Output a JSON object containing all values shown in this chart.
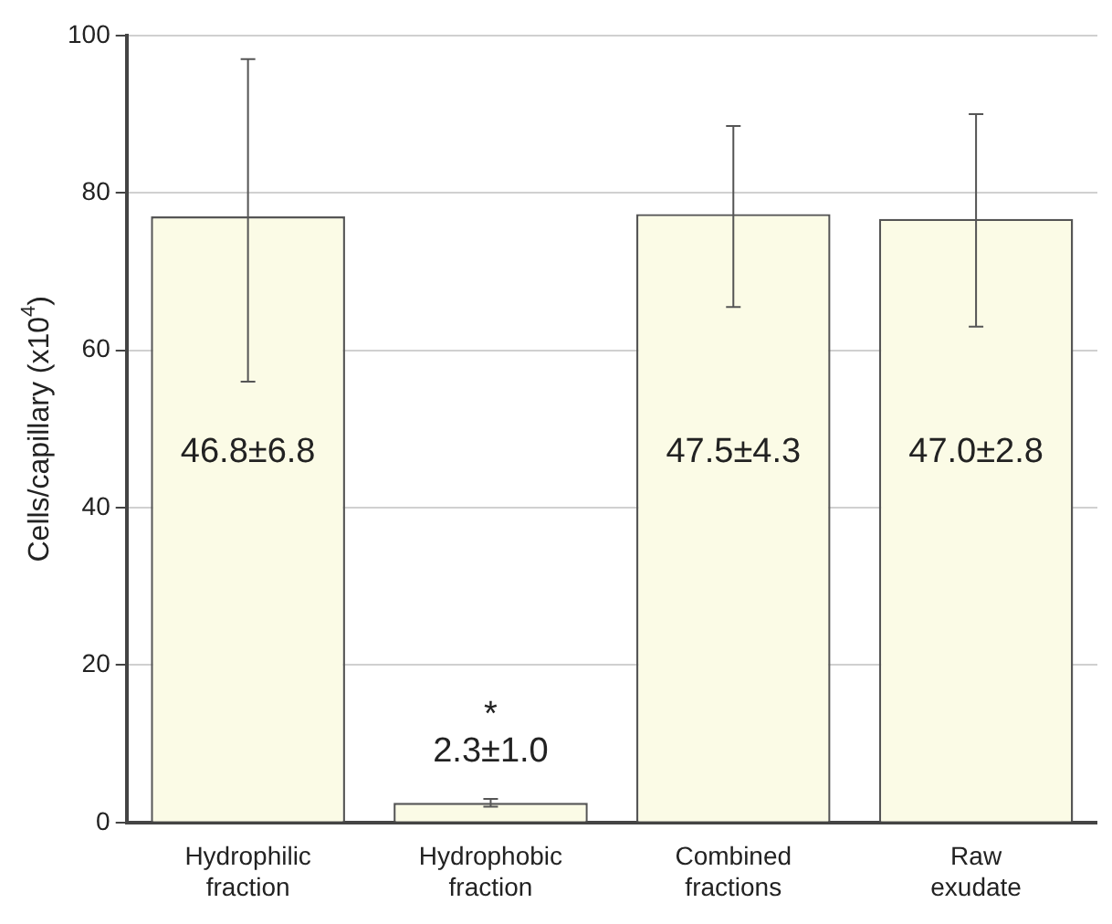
{
  "chart_data": {
    "type": "bar",
    "ylabel": "Cells/capillary (x10$^{4}$)",
    "categories": [
      "Hydrophilic fraction",
      "Hydrophobic fraction",
      "Combined fractions",
      "Raw exudate"
    ],
    "values": [
      77,
      2.5,
      77.3,
      76.7
    ],
    "color": "#fbfbe6",
    "errors": [
      [
        56,
        97
      ],
      [
        2,
        3
      ],
      [
        65.5,
        88.5
      ],
      [
        63,
        90
      ]
    ],
    "ylim": [
      0,
      100
    ],
    "yticks": [
      0,
      20,
      40,
      60,
      80,
      100
    ],
    "grid": "y",
    "legend": false,
    "annotations": [
      "46.8±6.8",
      "*",
      "2.3±1.0",
      "47.5±4.3",
      "47.0±2.8"
    ]
  }
}
